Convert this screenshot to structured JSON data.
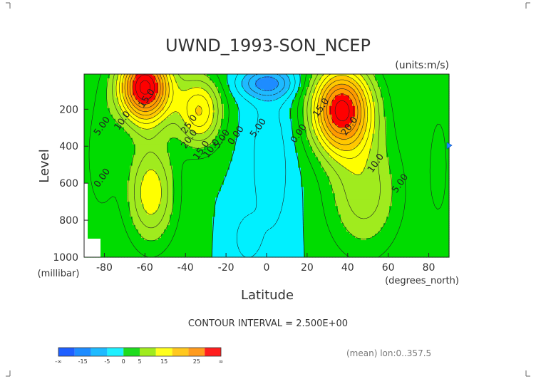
{
  "chart_data": {
    "type": "heatmap",
    "title": "UWND_1993-SON_NCEP",
    "units": "(units:m/s)",
    "xlabel": "Latitude",
    "x_unit": "(degrees_north)",
    "ylabel": "Level",
    "y_unit": "(millibar)",
    "xlim": [
      -90,
      90
    ],
    "ylim": [
      1000,
      10
    ],
    "x_ticks": [
      "-80",
      "-60",
      "-40",
      "-20",
      "0",
      "20",
      "40",
      "60",
      "80"
    ],
    "x_tick_values": [
      -80,
      -60,
      -40,
      -20,
      0,
      20,
      40,
      60,
      80
    ],
    "y_ticks": [
      "200",
      "400",
      "600",
      "800",
      "1000"
    ],
    "y_tick_values": [
      200,
      400,
      600,
      800,
      1000
    ],
    "contour_interval_text": "CONTOUR INTERVAL = 2.500E+00",
    "footer_text": "(mean) lon:0..357.5",
    "contour_labels": [
      {
        "text": "5.00",
        "lat": -80,
        "lev": 300
      },
      {
        "text": "10.0",
        "lat": -70,
        "lev": 270
      },
      {
        "text": "15.0",
        "lat": -58,
        "lev": 150
      },
      {
        "text": "25.0",
        "lat": -37,
        "lev": 290
      },
      {
        "text": "20.0",
        "lat": -37,
        "lev": 370
      },
      {
        "text": "15.0",
        "lat": -31,
        "lev": 430
      },
      {
        "text": "10.0",
        "lat": -26,
        "lev": 420
      },
      {
        "text": "5.00",
        "lat": -21,
        "lev": 370
      },
      {
        "text": "0.00",
        "lat": -14,
        "lev": 350
      },
      {
        "text": "5.00",
        "lat": -3,
        "lev": 310
      },
      {
        "text": "0.00",
        "lat": 17,
        "lev": 340
      },
      {
        "text": "15.0",
        "lat": 28,
        "lev": 200
      },
      {
        "text": "20.0",
        "lat": 42,
        "lev": 300
      },
      {
        "text": "10.0",
        "lat": 55,
        "lev": 500
      },
      {
        "text": "5.00",
        "lat": 67,
        "lev": 610
      },
      {
        "text": "0.00",
        "lat": -80,
        "lev": 580
      }
    ],
    "colorbar": {
      "colors": [
        "#1e5fff",
        "#1e8cff",
        "#1ebaff",
        "#1ef0ff",
        "#1edc1e",
        "#a0eb1e",
        "#ffff1e",
        "#ffc81e",
        "#ff9b1e",
        "#ff1e1e"
      ],
      "labels": [
        "-∞",
        "-15",
        "-5",
        "0",
        "5",
        "15",
        "25",
        "∞"
      ]
    },
    "levels": [
      -15,
      -10,
      -5,
      0,
      5,
      10,
      15,
      20,
      25
    ],
    "colors": [
      "#1e5fff",
      "#1e8cff",
      "#1ebaff",
      "#00f0ff",
      "#00dc00",
      "#a0eb1e",
      "#ffff00",
      "#ffc800",
      "#ff9b00",
      "#ff0000"
    ]
  }
}
